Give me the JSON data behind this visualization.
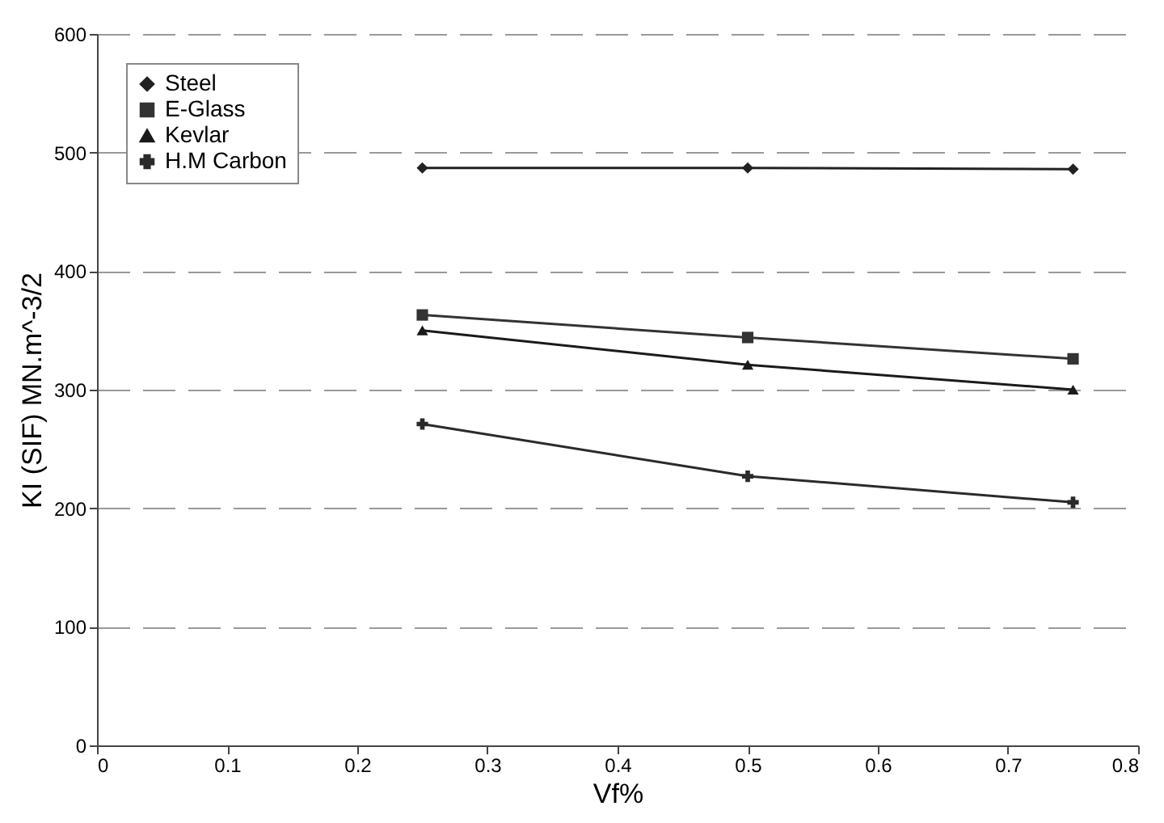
{
  "chart_data": {
    "type": "line",
    "xlabel": "Vf%",
    "ylabel": "KI (SIF) MN.m^-3/2",
    "x": [
      0.25,
      0.5,
      0.75
    ],
    "series": [
      {
        "name": "Steel",
        "color": "#222222",
        "marker": "diamond",
        "values": [
          487,
          487,
          486
        ]
      },
      {
        "name": "E-Glass",
        "color": "#333333",
        "marker": "square",
        "values": [
          363,
          344,
          326
        ]
      },
      {
        "name": "Kevlar",
        "color": "#1a1a1a",
        "marker": "triangle",
        "values": [
          350,
          321,
          300
        ]
      },
      {
        "name": "H.M Carbon",
        "color": "#2a2a2a",
        "marker": "cross",
        "values": [
          271,
          227,
          205
        ]
      }
    ],
    "xlim": [
      0,
      0.8
    ],
    "xticks": [
      0,
      0.1,
      0.2,
      0.3,
      0.4,
      0.5,
      0.6,
      0.7,
      0.8
    ],
    "ylim": [
      0,
      600
    ],
    "yticks": [
      0,
      100,
      200,
      300,
      400,
      500,
      600
    ],
    "grid": "y",
    "legend": "top left",
    "line_style": "solid"
  }
}
